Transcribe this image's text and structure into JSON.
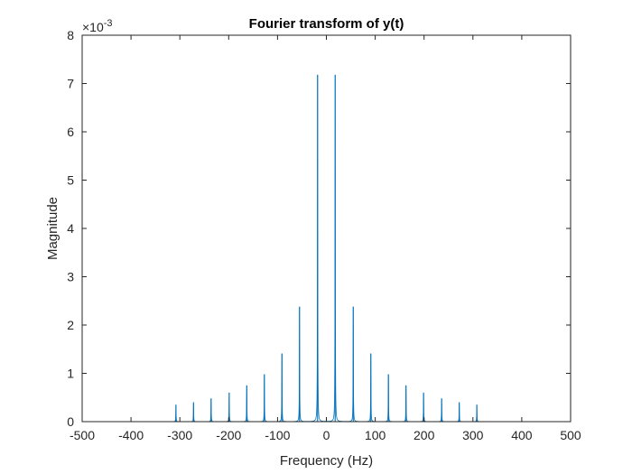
{
  "chart_data": {
    "type": "line",
    "title": "Fourier transform of y(t)",
    "xlabel": "Frequency (Hz)",
    "ylabel": "Magnitude",
    "xlim": [
      -500,
      500
    ],
    "ylim": [
      0,
      8
    ],
    "y_scale_factor": "×10",
    "y_scale_exponent": "-3",
    "xticks": [
      -500,
      -400,
      -300,
      -200,
      -100,
      0,
      100,
      200,
      300,
      400,
      500
    ],
    "yticks": [
      0,
      1,
      2,
      3,
      4,
      5,
      6,
      7,
      8
    ],
    "xtick_labels": [
      "-500",
      "-400",
      "-300",
      "-200",
      "-100",
      "0",
      "100",
      "200",
      "300",
      "400",
      "500"
    ],
    "ytick_labels": [
      "0",
      "1",
      "2",
      "3",
      "4",
      "5",
      "6",
      "7",
      "8"
    ],
    "grid": false,
    "line_color": "#0072BD",
    "series": [
      {
        "peaks": [
          {
            "x": -308,
            "y": 0.35
          },
          {
            "x": -272,
            "y": 0.4
          },
          {
            "x": -236,
            "y": 0.48
          },
          {
            "x": -199,
            "y": 0.6
          },
          {
            "x": -163,
            "y": 0.75
          },
          {
            "x": -127,
            "y": 0.98
          },
          {
            "x": -91,
            "y": 1.41
          },
          {
            "x": -55,
            "y": 2.38
          },
          {
            "x": -18,
            "y": 7.18
          },
          {
            "x": 18,
            "y": 7.18
          },
          {
            "x": 55,
            "y": 2.38
          },
          {
            "x": 91,
            "y": 1.41
          },
          {
            "x": 127,
            "y": 0.98
          },
          {
            "x": 163,
            "y": 0.75
          },
          {
            "x": 199,
            "y": 0.6
          },
          {
            "x": 236,
            "y": 0.48
          },
          {
            "x": 272,
            "y": 0.4
          },
          {
            "x": 308,
            "y": 0.35
          }
        ]
      }
    ]
  }
}
